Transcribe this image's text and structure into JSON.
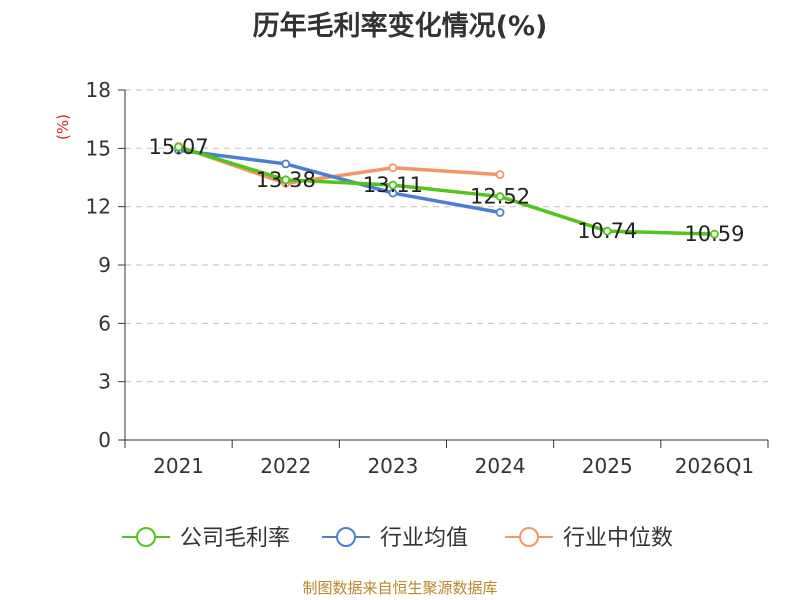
{
  "title": "历年毛利率变化情况(%)",
  "source": "制图数据来自恒生聚源数据库",
  "chart_data": {
    "type": "line",
    "categories": [
      "2021",
      "2022",
      "2023",
      "2024",
      "2025",
      "2026Q1"
    ],
    "ylabel": "(%)",
    "ylim": [
      0,
      18
    ],
    "yticks": [
      0,
      3,
      6,
      9,
      12,
      15,
      18
    ],
    "grid": true,
    "legend_position": "bottom",
    "series": [
      {
        "name": "公司毛利率",
        "color": "#52c41a",
        "values": [
          15.07,
          13.38,
          13.11,
          12.52,
          10.74,
          10.59
        ],
        "labels": [
          "15.07",
          "13.38",
          "13.11",
          "12.52",
          "10.74",
          "10.59"
        ]
      },
      {
        "name": "行业均值",
        "color": "#4a7fd4",
        "values": [
          14.9,
          14.2,
          12.7,
          11.7,
          null,
          null
        ]
      },
      {
        "name": "行业中位数",
        "color": "#f59563",
        "values": [
          15.1,
          13.2,
          14.0,
          13.65,
          null,
          null
        ]
      }
    ]
  }
}
